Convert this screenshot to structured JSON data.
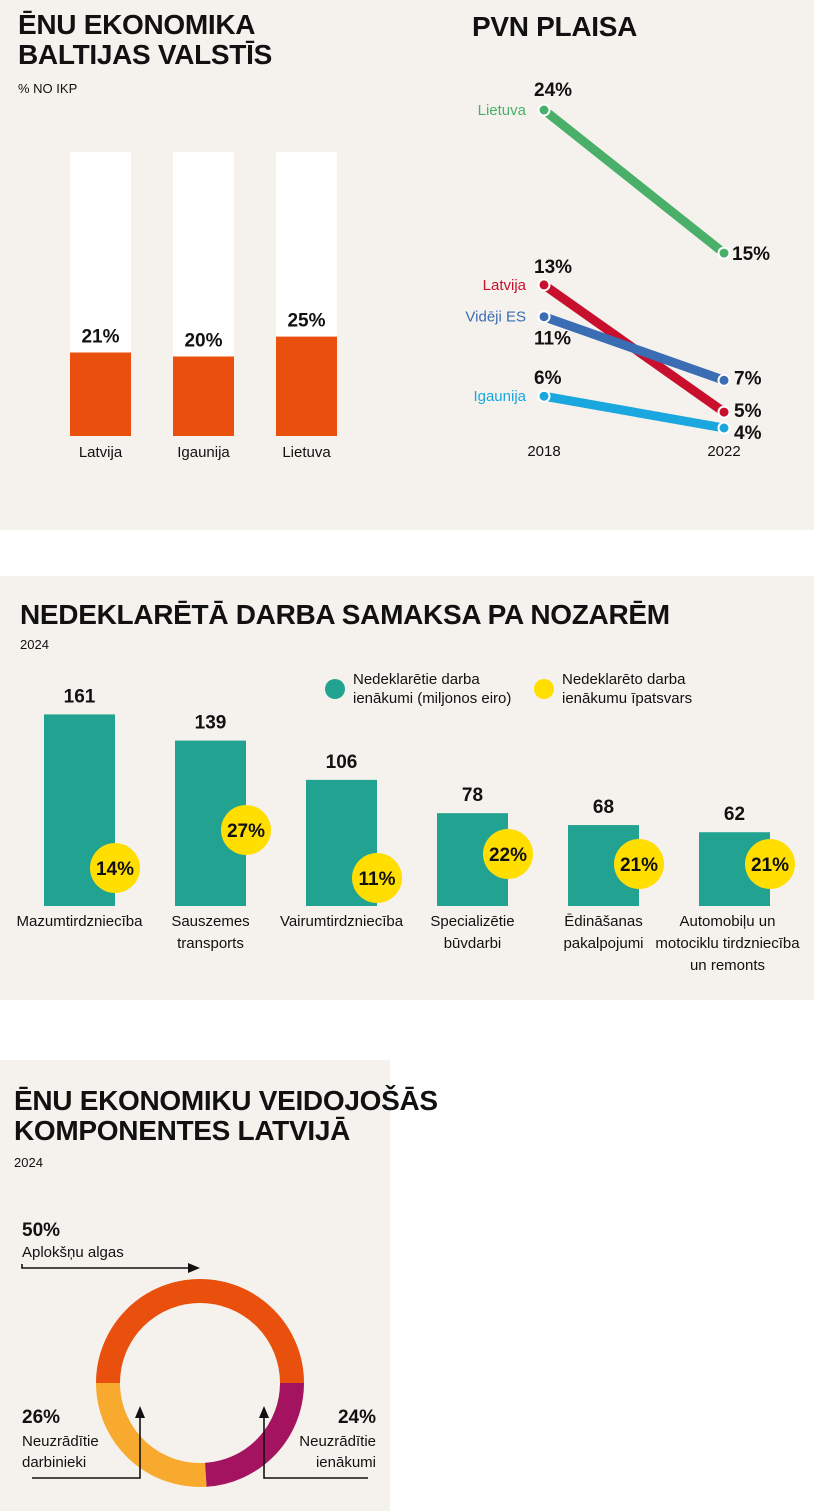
{
  "colors": {
    "background": "#f5f2ed",
    "orange": "#e9500e",
    "teal": "#22a391",
    "yellow": "#ffde00",
    "green": "#4ab069",
    "red": "#c8102e",
    "blue": "#3a6db4",
    "cyan": "#1aa7e0",
    "purple": "#a3135f",
    "amber": "#f7aa2d"
  },
  "panel1": {
    "title_line1": "ĒNU EKONOMIKA",
    "title_line2": "BALTIJAS VALSTĪS",
    "subtitle": "% NO IKP"
  },
  "panel2": {
    "title": "PVN PLAISA"
  },
  "panel3": {
    "title": "NEDEKLARĒTĀ DARBA SAMAKSA PA NOZARĒM",
    "subtitle": "2024",
    "legend_teal_line1": "Nedeklarētie darba",
    "legend_teal_line2": "ienākumi (miljonos eiro)",
    "legend_yellow_line1": "Nedeklarēto darba",
    "legend_yellow_line2": "ienākumu īpatsvars"
  },
  "panel4": {
    "title_line1": "ĒNU EKONOMIKU VEIDOJOŠĀS",
    "title_line2": "KOMPONENTES LATVIJĀ",
    "subtitle": "2024"
  },
  "chart_data": [
    {
      "type": "bar",
      "title": "ĒNU EKONOMIKA BALTIJAS VALSTĪS",
      "subtitle": "% NO IKP",
      "categories": [
        "Latvija",
        "Igaunija",
        "Lietuva"
      ],
      "values": [
        21,
        20,
        25
      ],
      "value_labels": [
        "21%",
        "20%",
        "25%"
      ],
      "ylim": [
        0,
        100
      ]
    },
    {
      "type": "line",
      "title": "PVN PLAISA",
      "x": [
        "2018",
        "2022"
      ],
      "series": [
        {
          "name": "Lietuva",
          "values": [
            24,
            15
          ],
          "labels": [
            "24%",
            "15%"
          ],
          "color": "#4ab069"
        },
        {
          "name": "Latvija",
          "values": [
            13,
            5
          ],
          "labels": [
            "13%",
            "5%"
          ],
          "color": "#c8102e"
        },
        {
          "name": "Vidēji ES",
          "values": [
            11,
            7
          ],
          "labels": [
            "11%",
            "7%"
          ],
          "color": "#3a6db4"
        },
        {
          "name": "Igaunija",
          "values": [
            6,
            4
          ],
          "labels": [
            "6%",
            "4%"
          ],
          "color": "#1aa7e0"
        }
      ]
    },
    {
      "type": "bar",
      "title": "NEDEKLARĒTĀ DARBA SAMAKSA PA NOZARĒM",
      "subtitle": "2024",
      "categories": [
        [
          "Mazumtirdzniecība"
        ],
        [
          "Sauszemes",
          "transports"
        ],
        [
          "Vairumtirdzniecība"
        ],
        [
          "Specializētie",
          "būvdarbi"
        ],
        [
          "Ēdināšanas",
          "pakalpojumi"
        ],
        [
          "Automobiļu un",
          "motociklu tirdzniecība",
          "un remonts"
        ]
      ],
      "series": [
        {
          "name": "Nedeklarētie darba ienākumi (miljonos eiro)",
          "values": [
            161,
            139,
            106,
            78,
            68,
            62
          ],
          "labels": [
            "161",
            "139",
            "106",
            "78",
            "68",
            "62"
          ]
        },
        {
          "name": "Nedeklarēto darba ienākumu īpatsvars",
          "values": [
            14,
            27,
            11,
            22,
            21,
            21
          ],
          "labels": [
            "14%",
            "27%",
            "11%",
            "22%",
            "21%",
            "21%"
          ]
        }
      ]
    },
    {
      "type": "pie",
      "title": "ĒNU EKONOMIKU VEIDOJOŠĀS KOMPONENTES LATVIJĀ",
      "subtitle": "2024",
      "slices": [
        {
          "label": "Aplokšņu algas",
          "value": 50,
          "text": "50%",
          "color": "#e9500e"
        },
        {
          "label": "Neuzrādītie ienākumi",
          "value": 24,
          "text": "24%",
          "color": "#a3135f"
        },
        {
          "label": "Neuzrādītie darbinieki",
          "value": 26,
          "text": "26%",
          "color": "#f7aa2d"
        }
      ]
    }
  ]
}
